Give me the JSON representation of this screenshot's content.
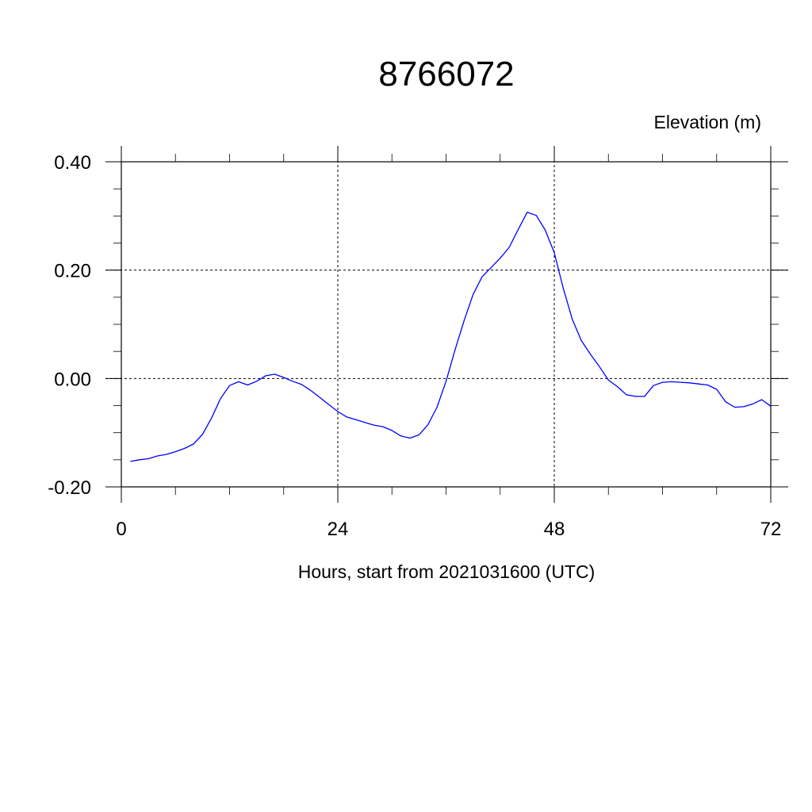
{
  "chart_data": {
    "type": "line",
    "title": "8766072",
    "ylabel": "Elevation (m)",
    "xlabel": "Hours, start from 2021031600 (UTC)",
    "xlim": [
      0,
      72
    ],
    "ylim": [
      -0.2,
      0.4
    ],
    "x_ticks": [
      0,
      24,
      48,
      72
    ],
    "x_tick_labels": [
      "0",
      "24",
      "48",
      "72"
    ],
    "y_ticks": [
      -0.2,
      0.0,
      0.2,
      0.4
    ],
    "y_tick_labels": [
      "-0.20",
      "0.00",
      "0.20",
      "0.40"
    ],
    "grid": true,
    "line_color": "#0000ff",
    "series": [
      {
        "x": [
          1,
          2,
          3,
          4,
          5,
          6,
          7,
          8,
          9,
          10,
          11,
          12,
          13,
          14,
          15,
          16,
          17,
          18,
          19,
          20,
          21,
          22,
          23,
          24,
          25,
          26,
          27,
          28,
          29,
          30,
          31,
          32,
          33,
          34,
          35,
          36,
          37,
          38,
          39,
          40,
          41,
          42,
          43,
          44,
          45,
          46,
          47,
          48,
          49,
          50,
          51,
          52,
          53,
          54,
          55,
          56,
          57,
          58,
          59,
          60,
          61,
          62,
          63,
          64,
          65,
          66,
          67,
          68,
          69,
          70,
          71,
          72
        ],
        "y": [
          -0.153,
          -0.15,
          -0.148,
          -0.143,
          -0.14,
          -0.135,
          -0.129,
          -0.121,
          -0.103,
          -0.073,
          -0.037,
          -0.013,
          -0.006,
          -0.012,
          -0.005,
          0.005,
          0.008,
          0.002,
          -0.005,
          -0.011,
          -0.022,
          -0.035,
          -0.048,
          -0.061,
          -0.071,
          -0.076,
          -0.081,
          -0.086,
          -0.089,
          -0.096,
          -0.106,
          -0.11,
          -0.104,
          -0.085,
          -0.053,
          -0.005,
          0.053,
          0.107,
          0.155,
          0.188,
          0.205,
          0.222,
          0.242,
          0.275,
          0.307,
          0.301,
          0.274,
          0.232,
          0.166,
          0.109,
          0.07,
          0.045,
          0.022,
          -0.003,
          -0.015,
          -0.03,
          -0.033,
          -0.033,
          -0.013,
          -0.007,
          -0.006,
          -0.007,
          -0.008,
          -0.01,
          -0.012,
          -0.02,
          -0.043,
          -0.053,
          -0.052,
          -0.047,
          -0.039,
          -0.051
        ]
      }
    ]
  }
}
